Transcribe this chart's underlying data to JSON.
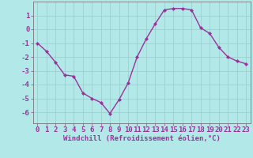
{
  "x": [
    0,
    1,
    2,
    3,
    4,
    5,
    6,
    7,
    8,
    9,
    10,
    11,
    12,
    13,
    14,
    15,
    16,
    17,
    18,
    19,
    20,
    21,
    22,
    23
  ],
  "y": [
    -1.0,
    -1.6,
    -2.4,
    -3.3,
    -3.4,
    -4.6,
    -5.0,
    -5.3,
    -6.1,
    -5.1,
    -3.9,
    -2.0,
    -0.7,
    0.4,
    1.4,
    1.5,
    1.5,
    1.4,
    0.1,
    -0.3,
    -1.3,
    -2.0,
    -2.3,
    -2.5
  ],
  "xlabel": "Windchill (Refroidissement éolien,°C)",
  "xlim": [
    -0.5,
    23.5
  ],
  "ylim": [
    -6.8,
    2.0
  ],
  "yticks": [
    1,
    0,
    -1,
    -2,
    -3,
    -4,
    -5,
    -6
  ],
  "xticks": [
    0,
    1,
    2,
    3,
    4,
    5,
    6,
    7,
    8,
    9,
    10,
    11,
    12,
    13,
    14,
    15,
    16,
    17,
    18,
    19,
    20,
    21,
    22,
    23
  ],
  "line_color": "#993399",
  "marker_color": "#993399",
  "bg_color": "#b3e8e8",
  "grid_color": "#99cccc",
  "axis_color": "#666666",
  "tick_color": "#993399",
  "xlabel_color": "#993399",
  "xlabel_fontsize": 6.5,
  "tick_fontsize": 6.5,
  "marker": "D",
  "marker_size": 2.0,
  "line_width": 1.0
}
